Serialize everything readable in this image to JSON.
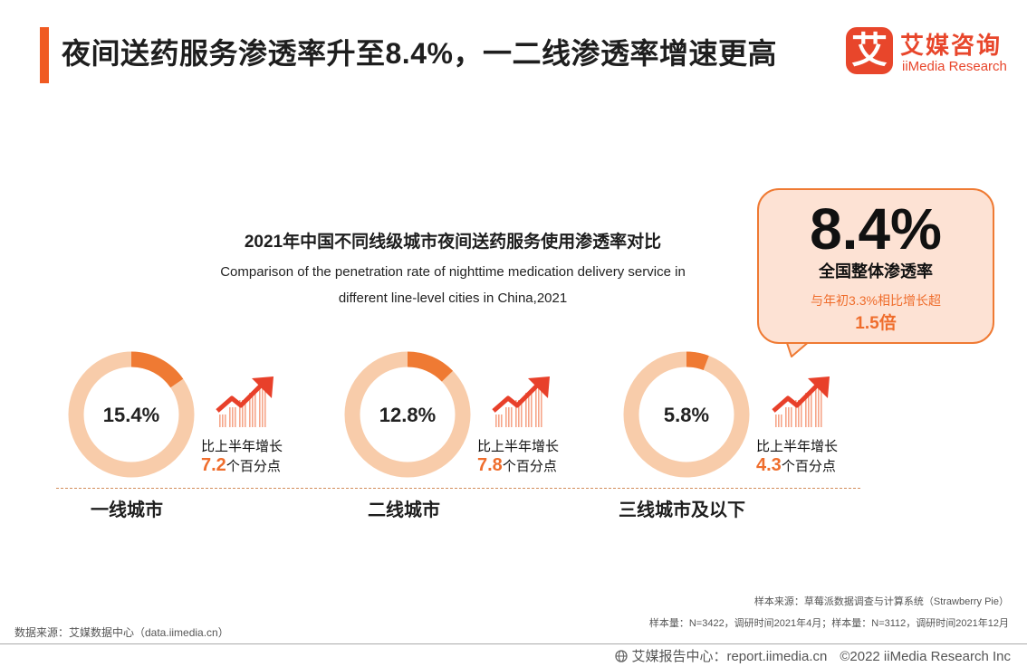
{
  "header": {
    "title": "夜间送药服务渗透率升至8.4%，一二线渗透率增速更高",
    "accent_color": "#f05a22"
  },
  "logo": {
    "mark": "艾",
    "cn": "艾媒咨询",
    "en": "iiMedia Research",
    "color": "#e8462b"
  },
  "chart_data": {
    "type": "donut",
    "title": "2021年中国不同线级城市夜间送药服务使用渗透率对比",
    "subtitle_line1": "Comparison of the penetration rate of nighttime medication delivery service in",
    "subtitle_line2": "different line-level cities in China,2021",
    "categories": [
      "一线城市",
      "二线城市",
      "三线城市及以下"
    ],
    "values": [
      15.4,
      12.8,
      5.8
    ],
    "value_labels": [
      "15.4%",
      "12.8%",
      "5.8%"
    ],
    "growth_label": "比上半年增长",
    "growth_values": [
      "7.2",
      "7.8",
      "4.3"
    ],
    "growth_unit": "个百分点",
    "colors": {
      "filled": "#ef7a33",
      "remaining": "#f8ccaa"
    }
  },
  "callout": {
    "value": "8.4%",
    "label": "全国整体渗透率",
    "note": "与年初3.3%相比增长超",
    "multiple": "1.5倍"
  },
  "sources": {
    "sample_source": "样本来源：草莓派数据调查与计算系统（Strawberry Pie）",
    "sample_size": "样本量：N=3422，调研时间2021年4月；样本量：N=3112，调研时间2021年12月",
    "data_source": "数据来源：艾媒数据中心（data.iimedia.cn）"
  },
  "footer": {
    "report_center": "艾媒报告中心：report.iimedia.cn",
    "copyright": "©2022  iiMedia Research Inc"
  }
}
